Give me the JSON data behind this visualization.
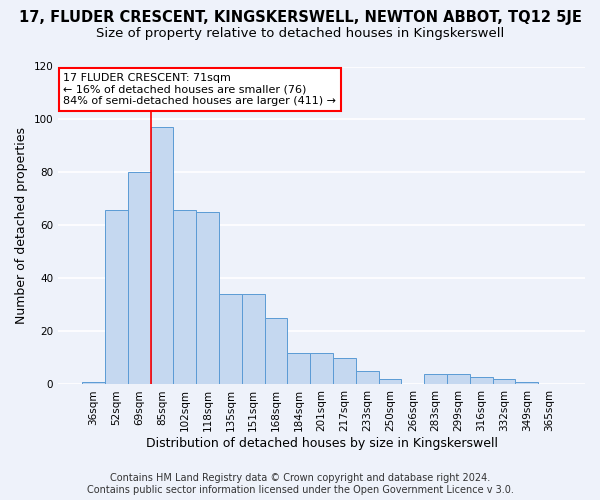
{
  "title": "17, FLUDER CRESCENT, KINGSKERSWELL, NEWTON ABBOT, TQ12 5JE",
  "subtitle": "Size of property relative to detached houses in Kingskerswell",
  "xlabel": "Distribution of detached houses by size in Kingskerswell",
  "ylabel": "Number of detached properties",
  "bar_labels": [
    "36sqm",
    "52sqm",
    "69sqm",
    "85sqm",
    "102sqm",
    "118sqm",
    "135sqm",
    "151sqm",
    "168sqm",
    "184sqm",
    "201sqm",
    "217sqm",
    "233sqm",
    "250sqm",
    "266sqm",
    "283sqm",
    "299sqm",
    "316sqm",
    "332sqm",
    "349sqm",
    "365sqm"
  ],
  "bar_values": [
    1,
    66,
    80,
    97,
    66,
    65,
    34,
    34,
    25,
    12,
    12,
    10,
    5,
    2,
    0,
    4,
    4,
    3,
    2,
    1,
    0
  ],
  "bar_color": "#c5d8f0",
  "bar_edge_color": "#5b9bd5",
  "ylim": [
    0,
    120
  ],
  "yticks": [
    0,
    20,
    40,
    60,
    80,
    100,
    120
  ],
  "vline_color": "red",
  "vline_x_index": 2,
  "annotation_title": "17 FLUDER CRESCENT: 71sqm",
  "annotation_line1": "← 16% of detached houses are smaller (76)",
  "annotation_line2": "84% of semi-detached houses are larger (411) →",
  "footer1": "Contains HM Land Registry data © Crown copyright and database right 2024.",
  "footer2": "Contains public sector information licensed under the Open Government Licence v 3.0.",
  "background_color": "#eef2fa",
  "grid_color": "#ffffff",
  "title_fontsize": 10.5,
  "subtitle_fontsize": 9.5,
  "axis_label_fontsize": 9,
  "tick_fontsize": 7.5,
  "footer_fontsize": 7
}
